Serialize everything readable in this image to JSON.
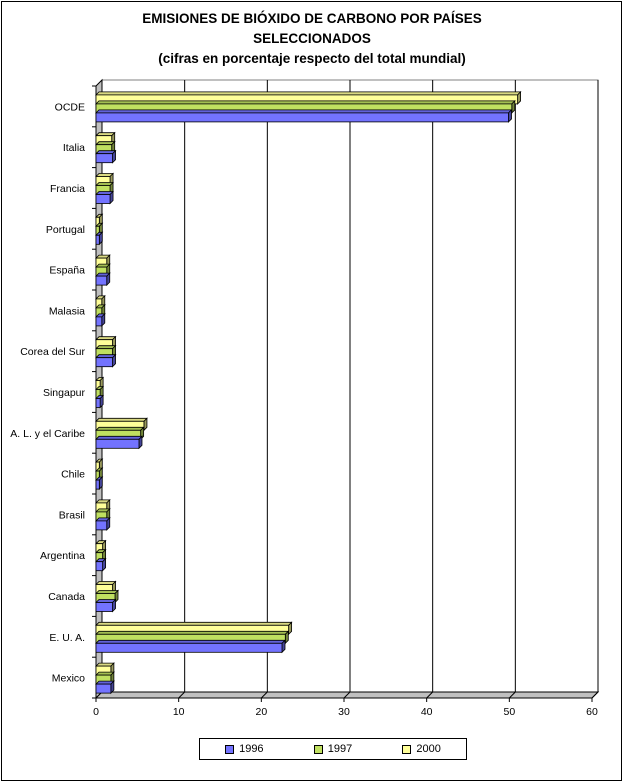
{
  "chart_data": {
    "type": "bar",
    "orientation": "horizontal",
    "title_lines": [
      "EMISIONES DE BIÓXIDO DE CARBONO POR PAÍSES",
      "SELECCIONADOS",
      "(cifras en porcentaje respecto del total mundial)"
    ],
    "categories": [
      "OCDE",
      "Italia",
      "Francia",
      "Portugal",
      "España",
      "Malasia",
      "Corea del Sur",
      "Singapur",
      "A. L. y el Caribe",
      "Chile",
      "Brasil",
      "Argentina",
      "Canada",
      "E. U. A.",
      "Mexico"
    ],
    "series": [
      {
        "name": "1996",
        "color": "#7373ff",
        "values": [
          49.9,
          2.0,
          1.7,
          0.4,
          1.3,
          0.7,
          2.0,
          0.5,
          5.2,
          0.4,
          1.3,
          0.8,
          2.0,
          22.5,
          1.8
        ]
      },
      {
        "name": "1997",
        "color": "#c0e060",
        "values": [
          50.3,
          1.9,
          1.7,
          0.4,
          1.3,
          0.7,
          2.0,
          0.5,
          5.4,
          0.4,
          1.3,
          0.8,
          2.3,
          22.9,
          1.8
        ]
      },
      {
        "name": "2000",
        "color": "#ffff99",
        "values": [
          51.0,
          1.9,
          1.7,
          0.4,
          1.3,
          0.7,
          2.0,
          0.5,
          5.8,
          0.4,
          1.3,
          0.8,
          2.0,
          23.3,
          1.8
        ]
      }
    ],
    "x_ticks": [
      "0",
      "10",
      "20",
      "30",
      "40",
      "50",
      "60"
    ],
    "xlim": [
      0,
      60
    ],
    "grid": true,
    "legend_position": "bottom"
  }
}
